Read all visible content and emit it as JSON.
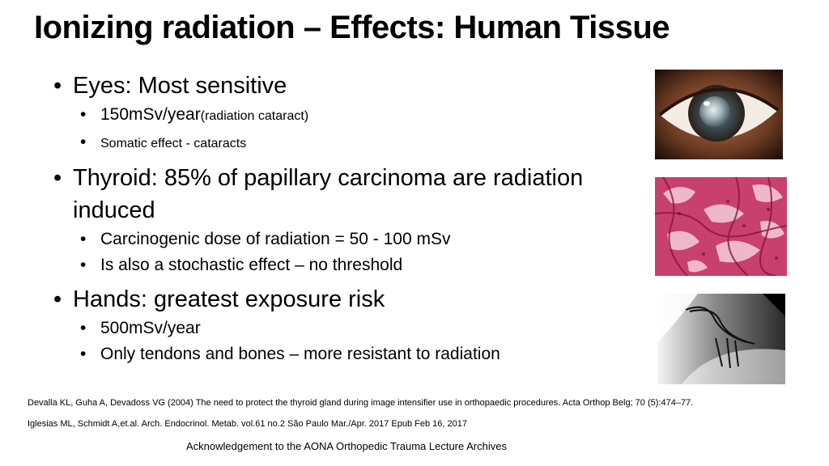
{
  "slide": {
    "title": "Ionizing radiation – Effects: Human Tissue",
    "bullets": [
      {
        "text": "Eyes: Most sensitive",
        "sub": [
          {
            "main": "150mSv/year",
            "small": "(radiation cataract)"
          },
          {
            "main": "",
            "small": "Somatic effect - cataracts"
          }
        ]
      },
      {
        "text": "Thyroid: 85% of papillary carcinoma are radiation induced",
        "sub": [
          {
            "main": "Carcinogenic dose of radiation = 50 - 100 mSv"
          },
          {
            "main": "Is also a stochastic effect – no threshold"
          }
        ]
      },
      {
        "text": "Hands: greatest exposure risk",
        "sub": [
          {
            "main": "500mSv/year"
          },
          {
            "main": "Only tendons and bones – more resistant to radiation"
          }
        ]
      }
    ],
    "references": [
      "Devalla KL, Guha A, Devadoss VG (2004) The need to protect the thyroid gland during image intensifier use in orthopaedic procedures. Acta Orthop Belg; 70 (5):474–77.",
      "Iglesias ML, Schmidt A,et.al. Arch. Endocrinol. Metab. vol.61 no.2 São Paulo Mar./Apr. 2017  Epub Feb 16, 2017"
    ],
    "acknowledgement": "Acknowledgement to the AONA Orthopedic Trauma Lecture Archives",
    "bullet_char": "•"
  },
  "images": [
    {
      "name": "eye-cataract-image",
      "description": "eye with cataract"
    },
    {
      "name": "thyroid-histology-image",
      "description": "pink histology of papillary carcinoma"
    },
    {
      "name": "hand-xray-image",
      "description": "fluoroscopy of hand with wires"
    }
  ]
}
